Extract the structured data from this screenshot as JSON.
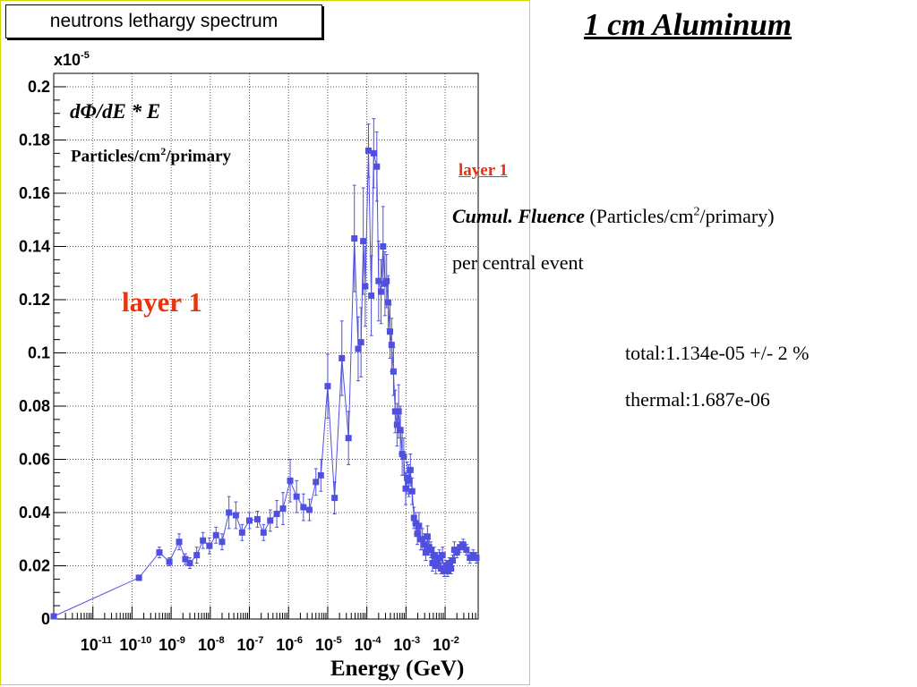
{
  "slide": {
    "title": "1 cm Aluminum",
    "layer_link": "layer 1",
    "fluence_label": "Cumul. Fluence",
    "fluence_unit_pre": "(Particles/cm",
    "fluence_unit_sup": "2",
    "fluence_unit_post": "/primary)",
    "per_event": "per central event",
    "total": "total:1.134e-05 +/- 2 %",
    "thermal": "thermal:1.687e-06"
  },
  "colors": {
    "series": "#5050e0",
    "layer_text": "#e8330e",
    "frame": "#d8d800"
  },
  "chart_data": {
    "type": "scatter",
    "title": "neutrons lethargy spectrum",
    "ylabel_formula": "dΦ/dE * E",
    "ylabel_unit_pre": "Particles/cm",
    "ylabel_unit_sup": "2",
    "ylabel_unit_post": "/primary",
    "y_multiplier": "x10",
    "y_multiplier_exp": "-5",
    "annotation": "layer 1",
    "xlabel": "Energy (GeV)",
    "x_scale": "log",
    "xlim": [
      1e-12,
      0.07
    ],
    "ylim": [
      0,
      0.2
    ],
    "grid": true,
    "y_ticks": [
      "0",
      "0.02",
      "0.04",
      "0.06",
      "0.08",
      "0.1",
      "0.12",
      "0.14",
      "0.16",
      "0.18",
      "0.2"
    ],
    "x_ticks": [
      {
        "base": "10",
        "exp": "-11"
      },
      {
        "base": "10",
        "exp": "-10"
      },
      {
        "base": "10",
        "exp": "-9"
      },
      {
        "base": "10",
        "exp": "-8"
      },
      {
        "base": "10",
        "exp": "-7"
      },
      {
        "base": "10",
        "exp": "-6"
      },
      {
        "base": "10",
        "exp": "-5"
      },
      {
        "base": "10",
        "exp": "-4"
      },
      {
        "base": "10",
        "exp": "-3"
      },
      {
        "base": "10",
        "exp": "-2"
      }
    ],
    "series": [
      {
        "x": [
          1e-12,
          1.5e-10,
          5e-10,
          9e-10,
          1.6e-09,
          2.3e-09,
          3e-09,
          4.5e-09,
          6.5e-09,
          9.5e-09,
          1.4e-08,
          2e-08,
          3e-08,
          4.5e-08,
          6.5e-08,
          1e-07,
          1.6e-07,
          2.3e-07,
          3.4e-07,
          5e-07,
          7.2e-07,
          1.1e-06,
          1.6e-06,
          2.4e-06,
          3.4e-06,
          5e-06,
          6.7e-06,
          1e-05,
          1.5e-05,
          2.3e-05,
          3.4e-05,
          4.8e-05,
          6e-05,
          7.1e-05,
          8.1e-05,
          9.1e-05,
          0.00011,
          0.00013,
          0.00015,
          0.00018,
          0.0002,
          0.00023,
          0.00026,
          0.00029,
          0.00032,
          0.00035,
          0.00039,
          0.00043,
          0.00048,
          0.00053,
          0.00059,
          0.00065,
          0.00072,
          0.0008,
          0.00088,
          0.00098,
          0.00107,
          0.00118,
          0.0013,
          0.00144,
          0.0016,
          0.00176,
          0.00195,
          0.00215,
          0.00238,
          0.00263,
          0.0029,
          0.0032,
          0.00355,
          0.0039,
          0.0043,
          0.00475,
          0.00525,
          0.0058,
          0.0064,
          0.0071,
          0.0078,
          0.0086,
          0.0095,
          0.0105,
          0.0116,
          0.0128,
          0.0142,
          0.0156,
          0.0172,
          0.02,
          0.024,
          0.029,
          0.035,
          0.043,
          0.052,
          0.063
        ],
        "y": [
          0.001,
          0.0155,
          0.025,
          0.0215,
          0.029,
          0.0225,
          0.021,
          0.024,
          0.0295,
          0.0275,
          0.0315,
          0.029,
          0.04,
          0.039,
          0.0325,
          0.037,
          0.0375,
          0.0325,
          0.037,
          0.0395,
          0.0415,
          0.052,
          0.046,
          0.042,
          0.041,
          0.0515,
          0.054,
          0.0875,
          0.0455,
          0.098,
          0.068,
          0.143,
          0.1015,
          0.104,
          0.142,
          0.125,
          0.176,
          0.1215,
          0.175,
          0.17,
          0.127,
          0.123,
          0.14,
          0.126,
          0.127,
          0.119,
          0.108,
          0.103,
          0.093,
          0.078,
          0.073,
          0.078,
          0.071,
          0.062,
          0.061,
          0.049,
          0.053,
          0.052,
          0.056,
          0.048,
          0.038,
          0.036,
          0.032,
          0.035,
          0.03,
          0.03,
          0.028,
          0.025,
          0.031,
          0.027,
          0.026,
          0.021,
          0.024,
          0.02,
          0.022,
          0.023,
          0.019,
          0.024,
          0.018,
          0.02,
          0.018,
          0.021,
          0.019,
          0.022,
          0.026,
          0.025,
          0.027,
          0.028,
          0.026,
          0.023,
          0.024,
          0.023
        ],
        "err": [
          0.0,
          0.001,
          0.002,
          0.0015,
          0.003,
          0.002,
          0.002,
          0.003,
          0.003,
          0.003,
          0.003,
          0.003,
          0.006,
          0.005,
          0.003,
          0.003,
          0.003,
          0.003,
          0.004,
          0.005,
          0.006,
          0.008,
          0.006,
          0.005,
          0.004,
          0.005,
          0.006,
          0.012,
          0.006,
          0.014,
          0.01,
          0.02,
          0.012,
          0.013,
          0.02,
          0.015,
          0.01,
          0.015,
          0.013,
          0.013,
          0.015,
          0.012,
          0.015,
          0.012,
          0.01,
          0.01,
          0.01,
          0.01,
          0.009,
          0.008,
          0.008,
          0.01,
          0.009,
          0.008,
          0.007,
          0.006,
          0.006,
          0.006,
          0.006,
          0.005,
          0.004,
          0.004,
          0.004,
          0.005,
          0.004,
          0.004,
          0.004,
          0.003,
          0.004,
          0.003,
          0.003,
          0.003,
          0.003,
          0.003,
          0.003,
          0.003,
          0.002,
          0.003,
          0.002,
          0.002,
          0.002,
          0.002,
          0.002,
          0.002,
          0.003,
          0.002,
          0.002,
          0.002,
          0.002,
          0.002,
          0.002,
          0.002
        ]
      }
    ]
  }
}
